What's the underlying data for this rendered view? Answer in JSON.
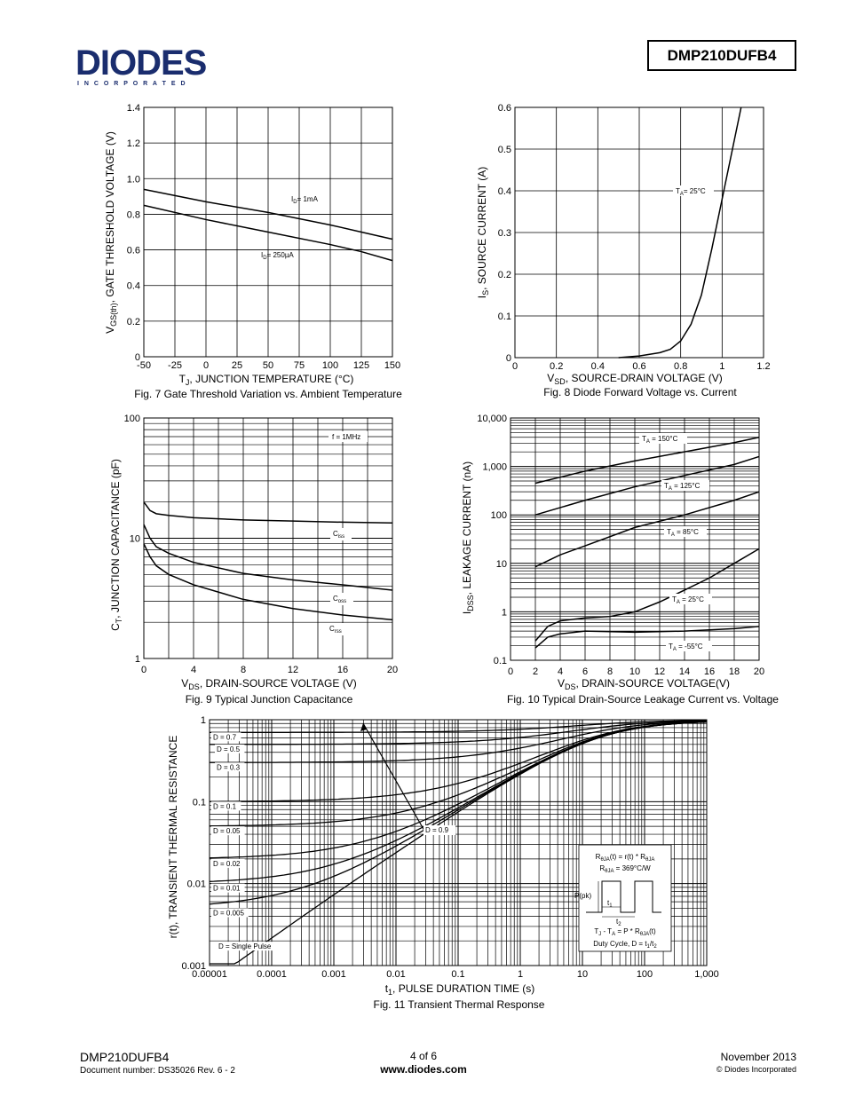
{
  "header": {
    "logo_text": "DIODES",
    "logo_sub": "I N C O R P O R A T E D",
    "part_number": "DMP210DUFB4"
  },
  "footer": {
    "part": "DMP210DUFB4",
    "doc": "Document number: DS35026 Rev. 6 - 2",
    "page": "4 of 6",
    "website": "www.diodes.com",
    "date": "November 2013",
    "copyright": "© Diodes Incorporated"
  },
  "chart_data": [
    {
      "id": "fig7",
      "type": "line",
      "caption": "Fig. 7 Gate Threshold Variation vs. Ambient Temperature",
      "xlabel": "T_J, JUNCTION TEMPERATURE (°C)",
      "ylabel": "V_GS(th), GATE THRESHOLD VOLTAGE (V)",
      "xlim": [
        -50,
        150
      ],
      "ylim": [
        0,
        1.4
      ],
      "xticks": [
        "-50",
        "-25",
        "0",
        "25",
        "50",
        "75",
        "100",
        "125",
        "150"
      ],
      "yticks": [
        "0",
        "0.2",
        "0.4",
        "0.6",
        "0.8",
        "1.0",
        "1.2",
        "1.4"
      ],
      "series": [
        {
          "name": "I_D = 1mA",
          "x": [
            -50,
            0,
            50,
            100,
            125,
            150
          ],
          "y": [
            0.94,
            0.87,
            0.81,
            0.74,
            0.7,
            0.66
          ]
        },
        {
          "name": "I_D = 250µA",
          "x": [
            -50,
            0,
            50,
            100,
            125,
            150
          ],
          "y": [
            0.85,
            0.77,
            0.7,
            0.63,
            0.59,
            0.54
          ]
        }
      ]
    },
    {
      "id": "fig8",
      "type": "line",
      "caption": "Fig. 8 Diode Forward Voltage vs. Current",
      "xlabel": "V_SD, SOURCE-DRAIN VOLTAGE (V)",
      "ylabel": "I_S, SOURCE CURRENT (A)",
      "xlim": [
        0,
        1.2
      ],
      "ylim": [
        0,
        0.6
      ],
      "xticks": [
        "0",
        "0.2",
        "0.4",
        "0.6",
        "0.8",
        "1",
        "1.2"
      ],
      "yticks": [
        "0",
        "0.1",
        "0.2",
        "0.3",
        "0.4",
        "0.5",
        "0.6"
      ],
      "series": [
        {
          "name": "T_A = 25°C",
          "x": [
            0.5,
            0.6,
            0.7,
            0.75,
            0.8,
            0.85,
            0.9,
            0.95,
            1.0,
            1.05,
            1.1
          ],
          "y": [
            0.0,
            0.004,
            0.012,
            0.02,
            0.04,
            0.08,
            0.15,
            0.26,
            0.38,
            0.5,
            0.62
          ]
        }
      ]
    },
    {
      "id": "fig9",
      "type": "line",
      "caption": "Fig. 9 Typical Junction Capacitance",
      "xlabel": "V_DS, DRAIN-SOURCE VOLTAGE (V)",
      "ylabel": "C_T, JUNCTION CAPACITANCE (pF)",
      "xlim": [
        0,
        20
      ],
      "ylim": [
        1,
        100
      ],
      "yscale": "log",
      "xticks": [
        "0",
        "4",
        "8",
        "12",
        "16",
        "20"
      ],
      "yticks": [
        "1",
        "10",
        "100"
      ],
      "note": "f = 1MHz",
      "series": [
        {
          "name": "C_iss",
          "x": [
            0,
            0.5,
            1,
            2,
            4,
            8,
            12,
            16,
            20
          ],
          "y": [
            20,
            17,
            16,
            15.5,
            14.8,
            14.2,
            13.9,
            13.6,
            13.4
          ]
        },
        {
          "name": "C_oss",
          "x": [
            0,
            0.5,
            1,
            2,
            4,
            8,
            12,
            16,
            20
          ],
          "y": [
            13,
            10,
            8.5,
            7.5,
            6.3,
            5.1,
            4.5,
            4.1,
            3.7
          ]
        },
        {
          "name": "C_rss",
          "x": [
            0,
            0.5,
            1,
            2,
            4,
            8,
            12,
            16,
            20
          ],
          "y": [
            9,
            7,
            5.9,
            5,
            4.1,
            3.1,
            2.6,
            2.3,
            2.1
          ]
        }
      ]
    },
    {
      "id": "fig10",
      "type": "line",
      "caption": "Fig. 10 Typical Drain-Source Leakage Current vs. Voltage",
      "xlabel": "V_DS, DRAIN-SOURCE VOLTAGE(V)",
      "ylabel": "I_DSS, LEAKAGE CURRENT (nA)",
      "xlim": [
        0,
        20
      ],
      "ylim": [
        0.1,
        10000
      ],
      "yscale": "log",
      "xticks": [
        "0",
        "2",
        "4",
        "6",
        "8",
        "10",
        "12",
        "14",
        "16",
        "18",
        "20"
      ],
      "yticks": [
        "0.1",
        "1",
        "10",
        "100",
        "1,000",
        "10,000"
      ],
      "series": [
        {
          "name": "T_A = 150°C",
          "x": [
            2,
            6,
            10,
            14,
            18,
            20
          ],
          "y": [
            450,
            800,
            1300,
            2000,
            3100,
            4000
          ]
        },
        {
          "name": "T_A = 125°C",
          "x": [
            2,
            6,
            10,
            14,
            18,
            20
          ],
          "y": [
            100,
            200,
            380,
            650,
            1100,
            1600
          ]
        },
        {
          "name": "T_A = 85°C",
          "x": [
            2,
            4,
            6,
            10,
            14,
            18,
            20
          ],
          "y": [
            8.5,
            15,
            23,
            55,
            100,
            200,
            300
          ]
        },
        {
          "name": "T_A = 25°C",
          "x": [
            2,
            3,
            4,
            6,
            8,
            10,
            12,
            14,
            16,
            18,
            20
          ],
          "y": [
            0.25,
            0.5,
            0.65,
            0.75,
            0.8,
            1.0,
            1.6,
            2.8,
            5,
            10,
            20
          ]
        },
        {
          "name": "T_A = -55°C",
          "x": [
            2,
            3,
            4,
            6,
            10,
            14,
            18,
            20
          ],
          "y": [
            0.18,
            0.3,
            0.35,
            0.4,
            0.38,
            0.4,
            0.45,
            0.5
          ]
        }
      ]
    },
    {
      "id": "fig11",
      "type": "line",
      "caption": "Fig. 11 Transient Thermal Response",
      "xlabel": "t_1, PULSE DURATION TIME (s)",
      "ylabel": "r(t), TRANSIENT THERMAL RESISTANCE",
      "xlim": [
        1e-05,
        1000
      ],
      "ylim": [
        0.001,
        1
      ],
      "xscale": "log",
      "yscale": "log",
      "xticks": [
        "0.00001",
        "0.0001",
        "0.001",
        "0.01",
        "0.1",
        "1",
        "10",
        "100",
        "1,000"
      ],
      "yticks": [
        "0.001",
        "0.01",
        "0.1",
        "1"
      ],
      "series": [
        {
          "name": "D = 0.7",
          "level": 0.7
        },
        {
          "name": "D = 0.5",
          "level": 0.5
        },
        {
          "name": "D = 0.3",
          "level": 0.3
        },
        {
          "name": "D = 0.1",
          "level": 0.1
        },
        {
          "name": "D = 0.05",
          "level": 0.05
        },
        {
          "name": "D = 0.02",
          "level": 0.02
        },
        {
          "name": "D = 0.01",
          "level": 0.01
        },
        {
          "name": "D = 0.005",
          "level": 0.005
        },
        {
          "name": "D = Single Pulse",
          "level": 0.0
        }
      ],
      "annotation_arrow": "D = 0.9",
      "inset": {
        "eq1": "R_θJA(t) = r(t) * R_θJA",
        "eq2": "R_θJA = 369°C/W",
        "ppk": "P(pk)",
        "t1": "t1",
        "t2": "t2",
        "eq3": "T_J - T_A = P * R_θJA(t)",
        "eq4": "Duty Cycle, D = t1/t2"
      }
    }
  ]
}
